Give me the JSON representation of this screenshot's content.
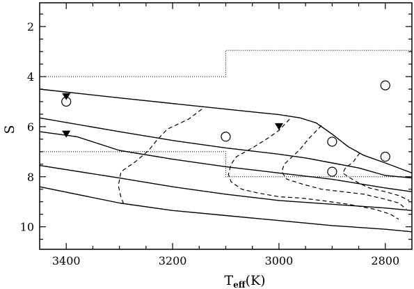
{
  "chart_data": {
    "type": "line",
    "title": "",
    "xlabel": "T",
    "xlabel_sub": "eff",
    "xlabel_unit": "(K)",
    "ylabel": "S",
    "xlim": [
      3450,
      2750
    ],
    "ylim": [
      10.9,
      1.05
    ],
    "x_ticks": [
      3400,
      3200,
      3000,
      2800
    ],
    "x_tick_labels": [
      "3400",
      "3200",
      "3000",
      "2800"
    ],
    "y_ticks": [
      2,
      4,
      6,
      8,
      10
    ],
    "y_tick_labels": [
      "2",
      "4",
      "6",
      "8",
      "10"
    ],
    "grid": false,
    "solid_tracks": [
      [
        [
          3450,
          4.5
        ],
        [
          3300,
          4.85
        ],
        [
          3100,
          5.3
        ],
        [
          3000,
          5.52
        ],
        [
          2960,
          5.65
        ],
        [
          2930,
          5.85
        ],
        [
          2900,
          6.3
        ],
        [
          2870,
          6.8
        ],
        [
          2840,
          7.15
        ],
        [
          2800,
          7.45
        ],
        [
          2750,
          7.85
        ]
      ],
      [
        [
          3450,
          5.65
        ],
        [
          3300,
          6.2
        ],
        [
          3200,
          6.55
        ],
        [
          3100,
          6.85
        ],
        [
          3000,
          7.1
        ],
        [
          2950,
          7.25
        ],
        [
          2900,
          7.45
        ],
        [
          2850,
          7.65
        ],
        [
          2800,
          7.95
        ],
        [
          2750,
          8.05
        ]
      ],
      [
        [
          3450,
          6.2
        ],
        [
          3380,
          6.4
        ],
        [
          3300,
          6.95
        ],
        [
          3200,
          7.3
        ],
        [
          3100,
          7.6
        ],
        [
          3000,
          7.85
        ],
        [
          2900,
          8.1
        ],
        [
          2800,
          8.45
        ],
        [
          2750,
          8.6
        ]
      ],
      [
        [
          3450,
          7.55
        ],
        [
          3300,
          8.05
        ],
        [
          3200,
          8.4
        ],
        [
          3100,
          8.7
        ],
        [
          3000,
          8.95
        ],
        [
          2900,
          9.1
        ],
        [
          2800,
          9.25
        ],
        [
          2750,
          9.35
        ]
      ],
      [
        [
          3450,
          8.4
        ],
        [
          3300,
          9.05
        ],
        [
          3200,
          9.35
        ],
        [
          3100,
          9.55
        ],
        [
          3000,
          9.75
        ],
        [
          2900,
          9.95
        ],
        [
          2800,
          10.1
        ],
        [
          2750,
          10.2
        ]
      ]
    ],
    "dashed_tracks": [
      [
        [
          3145,
          5.3
        ],
        [
          3170,
          5.7
        ],
        [
          3210,
          6.1
        ],
        [
          3230,
          6.55
        ],
        [
          3245,
          6.95
        ],
        [
          3270,
          7.4
        ],
        [
          3297,
          7.8
        ],
        [
          3302,
          8.35
        ],
        [
          3298,
          8.75
        ],
        [
          3292,
          9.1
        ]
      ],
      [
        [
          2980,
          5.7
        ],
        [
          3000,
          6.15
        ],
        [
          3020,
          6.45
        ],
        [
          3050,
          6.85
        ],
        [
          3080,
          7.2
        ],
        [
          3090,
          7.5
        ],
        [
          3095,
          7.9
        ],
        [
          3090,
          8.2
        ],
        [
          3070,
          8.5
        ],
        [
          3040,
          8.65
        ],
        [
          3000,
          8.8
        ],
        [
          2960,
          8.85
        ],
        [
          2920,
          8.95
        ],
        [
          2870,
          9.1
        ],
        [
          2820,
          9.3
        ],
        [
          2790,
          9.5
        ],
        [
          2775,
          9.7
        ]
      ],
      [
        [
          2920,
          5.95
        ],
        [
          2945,
          6.5
        ],
        [
          2960,
          6.9
        ],
        [
          2975,
          7.2
        ],
        [
          2990,
          7.5
        ],
        [
          2995,
          7.8
        ],
        [
          2985,
          8.1
        ],
        [
          2955,
          8.3
        ],
        [
          2920,
          8.5
        ],
        [
          2880,
          8.6
        ],
        [
          2840,
          8.7
        ],
        [
          2800,
          8.9
        ],
        [
          2775,
          9.05
        ],
        [
          2760,
          9.3
        ]
      ],
      [
        [
          2848,
          7.05
        ],
        [
          2860,
          7.4
        ],
        [
          2875,
          7.65
        ],
        [
          2880,
          7.85
        ],
        [
          2870,
          8.0
        ],
        [
          2850,
          8.25
        ],
        [
          2830,
          8.45
        ],
        [
          2800,
          8.6
        ],
        [
          2775,
          8.75
        ],
        [
          2755,
          8.95
        ]
      ]
    ],
    "dotted_boundary": [
      [
        [
          3450,
          4.0
        ],
        [
          3100,
          4.0
        ],
        [
          3100,
          2.95
        ],
        [
          2750,
          2.95
        ]
      ],
      [
        [
          3450,
          7.0
        ],
        [
          3100,
          7.0
        ],
        [
          3100,
          8.0
        ],
        [
          2750,
          8.0
        ]
      ]
    ],
    "circles": [
      [
        3400,
        5.0
      ],
      [
        3100,
        6.4
      ],
      [
        2900,
        6.6
      ],
      [
        2900,
        7.8
      ],
      [
        2800,
        4.35
      ],
      [
        2800,
        7.2
      ]
    ],
    "triangles": [
      [
        3400,
        4.8
      ],
      [
        3400,
        6.3
      ],
      [
        3000,
        6.0
      ]
    ]
  }
}
